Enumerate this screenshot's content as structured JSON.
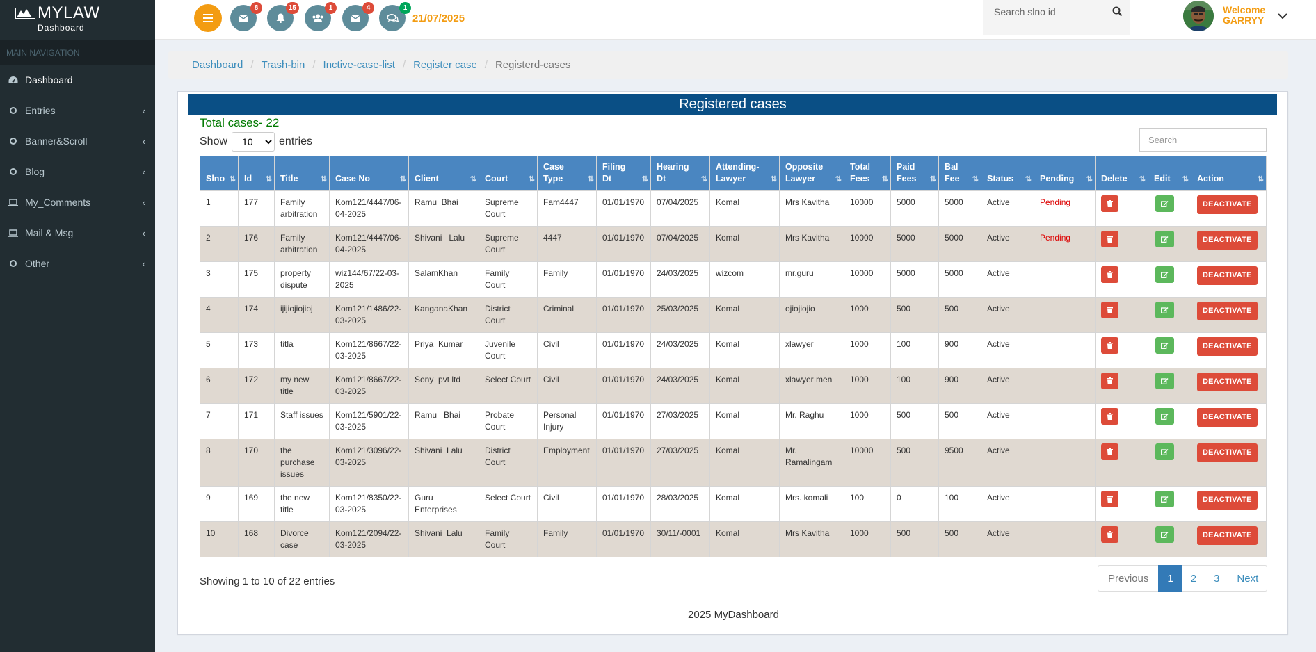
{
  "brand": {
    "name": "MYLAW",
    "sub": "Dashboard"
  },
  "sidebar": {
    "header": "MAIN NAVIGATION",
    "items": [
      {
        "label": "Dashboard",
        "icon": "dashboard-icon",
        "chevron": false
      },
      {
        "label": "Entries",
        "icon": "circle-icon",
        "chevron": true
      },
      {
        "label": "Banner&Scroll",
        "icon": "circle-icon",
        "chevron": true
      },
      {
        "label": "Blog",
        "icon": "circle-icon",
        "chevron": true
      },
      {
        "label": "My_Comments",
        "icon": "laptop-icon",
        "chevron": true
      },
      {
        "label": "Mail & Msg",
        "icon": "laptop-icon",
        "chevron": true
      },
      {
        "label": "Other",
        "icon": "circle-icon",
        "chevron": true
      }
    ]
  },
  "topbar": {
    "badges": {
      "mail": "8",
      "bell": "15",
      "users": "1",
      "mail2": "4",
      "chat": "1"
    },
    "date": "21/07/2025",
    "search_placeholder": "Search slno id",
    "welcome": "Welcome",
    "user": "GARRYY"
  },
  "breadcrumb": [
    "Dashboard",
    "Trash-bin",
    "Inctive-case-list",
    "Register case",
    "Registerd-cases"
  ],
  "box": {
    "title": "Registered cases",
    "total": "Total cases- 22",
    "show_label": "Show",
    "entries_label": "entries",
    "page_size": "10",
    "search_placeholder": "Search"
  },
  "table": {
    "columns": [
      "Slno",
      "Id",
      "Title",
      "Case No",
      "Client",
      "Court",
      "Case Type",
      "Filing Dt",
      "Hearing Dt",
      "Attending-Lawyer",
      "Opposite Lawyer",
      "Total Fees",
      "Paid Fees",
      "Bal Fee",
      "Status",
      "Pending",
      "Delete",
      "Edit",
      "Action"
    ],
    "action_label": "DEACTIVATE",
    "rows": [
      {
        "slno": "1",
        "id": "177",
        "title": "Family arbitration",
        "caseno": "Kom121/4447/06-04-2025",
        "client": "Ramu  Bhai",
        "court": "Supreme Court",
        "type": "Fam4447",
        "filing": "01/01/1970",
        "hearing": "07/04/2025",
        "lawyer": "Komal",
        "opp": "Mrs Kavitha",
        "total": "10000",
        "paid": "5000",
        "bal": "5000",
        "status": "Active",
        "pending": "Pending"
      },
      {
        "slno": "2",
        "id": "176",
        "title": "Family arbitration",
        "caseno": "Kom121/4447/06-04-2025",
        "client": "Shivani   Lalu",
        "court": "Supreme Court",
        "type": "4447",
        "filing": "01/01/1970",
        "hearing": "07/04/2025",
        "lawyer": "Komal",
        "opp": "Mrs Kavitha",
        "total": "10000",
        "paid": "5000",
        "bal": "5000",
        "status": "Active",
        "pending": "Pending"
      },
      {
        "slno": "3",
        "id": "175",
        "title": "property dispute",
        "caseno": "wiz144/67/22-03-2025",
        "client": "SalamKhan",
        "court": "Family Court",
        "type": "Family",
        "filing": "01/01/1970",
        "hearing": "24/03/2025",
        "lawyer": "wizcom",
        "opp": "mr.guru",
        "total": "10000",
        "paid": "5000",
        "bal": "5000",
        "status": "Active",
        "pending": ""
      },
      {
        "slno": "4",
        "id": "174",
        "title": "ijijiojiojioj",
        "caseno": "Kom121/1486/22-03-2025",
        "client": "KanganaKhan",
        "court": "District Court",
        "type": "Criminal",
        "filing": "01/01/1970",
        "hearing": "25/03/2025",
        "lawyer": "Komal",
        "opp": "ojiojiojio",
        "total": "1000",
        "paid": "500",
        "bal": "500",
        "status": "Active",
        "pending": ""
      },
      {
        "slno": "5",
        "id": "173",
        "title": "titla",
        "caseno": "Kom121/8667/22-03-2025",
        "client": "Priya  Kumar",
        "court": "Juvenile Court",
        "type": "Civil",
        "filing": "01/01/1970",
        "hearing": "24/03/2025",
        "lawyer": "Komal",
        "opp": "xlawyer",
        "total": "1000",
        "paid": "100",
        "bal": "900",
        "status": "Active",
        "pending": ""
      },
      {
        "slno": "6",
        "id": "172",
        "title": "my new title",
        "caseno": "Kom121/8667/22-03-2025",
        "client": "Sony  pvt ltd",
        "court": "Select Court",
        "type": "Civil",
        "filing": "01/01/1970",
        "hearing": "24/03/2025",
        "lawyer": "Komal",
        "opp": "xlawyer men",
        "total": "1000",
        "paid": "100",
        "bal": "900",
        "status": "Active",
        "pending": ""
      },
      {
        "slno": "7",
        "id": "171",
        "title": "Staff issues",
        "caseno": "Kom121/5901/22-03-2025",
        "client": "Ramu   Bhai",
        "court": "Probate Court",
        "type": "Personal Injury",
        "filing": "01/01/1970",
        "hearing": "27/03/2025",
        "lawyer": "Komal",
        "opp": "Mr. Raghu",
        "total": "1000",
        "paid": "500",
        "bal": "500",
        "status": "Active",
        "pending": ""
      },
      {
        "slno": "8",
        "id": "170",
        "title": "the purchase issues",
        "caseno": "Kom121/3096/22-03-2025",
        "client": "Shivani  Lalu",
        "court": "District Court",
        "type": "Employment",
        "filing": "01/01/1970",
        "hearing": "27/03/2025",
        "lawyer": "Komal",
        "opp": "Mr. Ramalingam",
        "total": "10000",
        "paid": "500",
        "bal": "9500",
        "status": "Active",
        "pending": ""
      },
      {
        "slno": "9",
        "id": "169",
        "title": "the new title",
        "caseno": "Kom121/8350/22-03-2025",
        "client": "Guru Enterprises",
        "court": "Select Court",
        "type": "Civil",
        "filing": "01/01/1970",
        "hearing": "28/03/2025",
        "lawyer": "Komal",
        "opp": "Mrs. komali",
        "total": "100",
        "paid": "0",
        "bal": "100",
        "status": "Active",
        "pending": ""
      },
      {
        "slno": "10",
        "id": "168",
        "title": "Divorce case",
        "caseno": "Kom121/2094/22-03-2025",
        "client": "Shivani  Lalu",
        "court": "Family Court",
        "type": "Family",
        "filing": "01/01/1970",
        "hearing": "30/11/-0001",
        "lawyer": "Komal",
        "opp": "Mrs Kavitha",
        "total": "1000",
        "paid": "500",
        "bal": "500",
        "status": "Active",
        "pending": ""
      }
    ]
  },
  "footer_info": "Showing 1 to 10 of 22 entries",
  "pagination": {
    "prev": "Previous",
    "pages": [
      "1",
      "2",
      "3"
    ],
    "next": "Next"
  },
  "footer": "2025 MyDashboard",
  "colors": {
    "sidebar": "#222d32",
    "title_bar": "#0a4f85",
    "table_header": "#4a86c1",
    "accent": "#f39c12",
    "danger": "#dd4b39",
    "success": "#5cb85c"
  }
}
